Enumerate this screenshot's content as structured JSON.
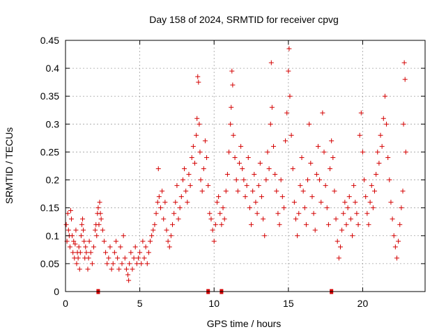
{
  "chart_data": {
    "type": "scatter",
    "title": "Day 158 of 2024, SRMTID for receiver cpvg",
    "xlabel": "GPS time / hours",
    "ylabel": "SRMTID / TECUs",
    "xlim": [
      0,
      24.2
    ],
    "ylim": [
      0,
      0.45
    ],
    "x_ticks": [
      0,
      5,
      10,
      15,
      20
    ],
    "x_tick_labels": [
      "0",
      "5",
      "10",
      "15",
      "20"
    ],
    "y_ticks": [
      0,
      0.05,
      0.1,
      0.15,
      0.2,
      0.25,
      0.3,
      0.35,
      0.4,
      0.45
    ],
    "y_tick_labels": [
      "0",
      "0.05",
      "0.1",
      "0.15",
      "0.2",
      "0.25",
      "0.3",
      "0.35",
      "0.4",
      "0.45"
    ],
    "grid": true,
    "marker": "+",
    "color": "#d40000",
    "gap_markers_x": [
      2.2,
      9.6,
      10.5,
      17.9
    ],
    "series": [
      {
        "name": "SRMTID",
        "points": [
          [
            0.05,
            0.12
          ],
          [
            0.1,
            0.09
          ],
          [
            0.15,
            0.14
          ],
          [
            0.2,
            0.11
          ],
          [
            0.25,
            0.1
          ],
          [
            0.3,
            0.08
          ],
          [
            0.35,
            0.145
          ],
          [
            0.4,
            0.13
          ],
          [
            0.45,
            0.1
          ],
          [
            0.5,
            0.07
          ],
          [
            0.55,
            0.09
          ],
          [
            0.6,
            0.06
          ],
          [
            0.65,
            0.085
          ],
          [
            0.7,
            0.11
          ],
          [
            0.75,
            0.05
          ],
          [
            0.8,
            0.07
          ],
          [
            0.85,
            0.06
          ],
          [
            0.9,
            0.08
          ],
          [
            0.95,
            0.04
          ],
          [
            1.0,
            0.07
          ],
          [
            1.05,
            0.1
          ],
          [
            1.1,
            0.12
          ],
          [
            1.15,
            0.13
          ],
          [
            1.2,
            0.11
          ],
          [
            1.25,
            0.09
          ],
          [
            1.3,
            0.06
          ],
          [
            1.35,
            0.08
          ],
          [
            1.4,
            0.07
          ],
          [
            1.5,
            0.04
          ],
          [
            1.55,
            0.06
          ],
          [
            1.6,
            0.09
          ],
          [
            1.7,
            0.07
          ],
          [
            1.8,
            0.05
          ],
          [
            1.9,
            0.08
          ],
          [
            2.0,
            0.11
          ],
          [
            2.05,
            0.12
          ],
          [
            2.1,
            0.1
          ],
          [
            2.15,
            0.14
          ],
          [
            2.2,
            0.15
          ],
          [
            2.25,
            0.12
          ],
          [
            2.3,
            0.16
          ],
          [
            2.35,
            0.14
          ],
          [
            2.4,
            0.13
          ],
          [
            2.5,
            0.11
          ],
          [
            2.6,
            0.09
          ],
          [
            2.7,
            0.07
          ],
          [
            2.8,
            0.05
          ],
          [
            2.9,
            0.06
          ],
          [
            3.0,
            0.08
          ],
          [
            3.1,
            0.04
          ],
          [
            3.2,
            0.05
          ],
          [
            3.3,
            0.07
          ],
          [
            3.4,
            0.09
          ],
          [
            3.5,
            0.06
          ],
          [
            3.6,
            0.04
          ],
          [
            3.7,
            0.08
          ],
          [
            3.8,
            0.05
          ],
          [
            3.9,
            0.1
          ],
          [
            4.0,
            0.06
          ],
          [
            4.1,
            0.04
          ],
          [
            4.2,
            0.03
          ],
          [
            4.25,
            0.02
          ],
          [
            4.3,
            0.05
          ],
          [
            4.4,
            0.07
          ],
          [
            4.5,
            0.04
          ],
          [
            4.6,
            0.06
          ],
          [
            4.7,
            0.08
          ],
          [
            4.8,
            0.05
          ],
          [
            4.9,
            0.06
          ],
          [
            5.0,
            0.07
          ],
          [
            5.1,
            0.05
          ],
          [
            5.2,
            0.09
          ],
          [
            5.3,
            0.06
          ],
          [
            5.4,
            0.08
          ],
          [
            5.5,
            0.05
          ],
          [
            5.6,
            0.07
          ],
          [
            5.7,
            0.09
          ],
          [
            5.8,
            0.1
          ],
          [
            5.9,
            0.11
          ],
          [
            6.0,
            0.12
          ],
          [
            6.1,
            0.14
          ],
          [
            6.2,
            0.16
          ],
          [
            6.25,
            0.22
          ],
          [
            6.3,
            0.17
          ],
          [
            6.4,
            0.15
          ],
          [
            6.5,
            0.18
          ],
          [
            6.6,
            0.13
          ],
          [
            6.7,
            0.16
          ],
          [
            6.8,
            0.11
          ],
          [
            6.9,
            0.09
          ],
          [
            7.0,
            0.08
          ],
          [
            7.1,
            0.1
          ],
          [
            7.2,
            0.12
          ],
          [
            7.3,
            0.14
          ],
          [
            7.4,
            0.16
          ],
          [
            7.5,
            0.19
          ],
          [
            7.6,
            0.13
          ],
          [
            7.7,
            0.15
          ],
          [
            7.8,
            0.17
          ],
          [
            7.9,
            0.2
          ],
          [
            8.0,
            0.22
          ],
          [
            8.1,
            0.18
          ],
          [
            8.2,
            0.16
          ],
          [
            8.3,
            0.21
          ],
          [
            8.4,
            0.19
          ],
          [
            8.5,
            0.24
          ],
          [
            8.6,
            0.26
          ],
          [
            8.7,
            0.23
          ],
          [
            8.8,
            0.28
          ],
          [
            8.85,
            0.31
          ],
          [
            8.9,
            0.385
          ],
          [
            8.95,
            0.375
          ],
          [
            9.0,
            0.3
          ],
          [
            9.05,
            0.25
          ],
          [
            9.1,
            0.2
          ],
          [
            9.2,
            0.18
          ],
          [
            9.3,
            0.22
          ],
          [
            9.4,
            0.27
          ],
          [
            9.5,
            0.24
          ],
          [
            9.6,
            0.19
          ],
          [
            9.7,
            0.14
          ],
          [
            9.8,
            0.13
          ],
          [
            9.9,
            0.11
          ],
          [
            10.0,
            0.09
          ],
          [
            10.1,
            0.12
          ],
          [
            10.2,
            0.16
          ],
          [
            10.3,
            0.17
          ],
          [
            10.4,
            0.14
          ],
          [
            10.5,
            0.12
          ],
          [
            10.6,
            0.15
          ],
          [
            10.7,
            0.13
          ],
          [
            10.8,
            0.18
          ],
          [
            10.9,
            0.21
          ],
          [
            11.0,
            0.25
          ],
          [
            11.1,
            0.3
          ],
          [
            11.15,
            0.33
          ],
          [
            11.2,
            0.395
          ],
          [
            11.25,
            0.37
          ],
          [
            11.3,
            0.28
          ],
          [
            11.4,
            0.24
          ],
          [
            11.5,
            0.2
          ],
          [
            11.6,
            0.18
          ],
          [
            11.7,
            0.23
          ],
          [
            11.8,
            0.26
          ],
          [
            11.9,
            0.22
          ],
          [
            12.0,
            0.2
          ],
          [
            12.1,
            0.17
          ],
          [
            12.2,
            0.19
          ],
          [
            12.3,
            0.24
          ],
          [
            12.4,
            0.15
          ],
          [
            12.5,
            0.12
          ],
          [
            12.6,
            0.18
          ],
          [
            12.7,
            0.21
          ],
          [
            12.8,
            0.16
          ],
          [
            12.9,
            0.14
          ],
          [
            13.0,
            0.19
          ],
          [
            13.1,
            0.23
          ],
          [
            13.2,
            0.17
          ],
          [
            13.3,
            0.13
          ],
          [
            13.4,
            0.1
          ],
          [
            13.5,
            0.2
          ],
          [
            13.6,
            0.25
          ],
          [
            13.7,
            0.22
          ],
          [
            13.8,
            0.3
          ],
          [
            13.85,
            0.41
          ],
          [
            13.9,
            0.33
          ],
          [
            14.0,
            0.26
          ],
          [
            14.1,
            0.21
          ],
          [
            14.2,
            0.18
          ],
          [
            14.3,
            0.14
          ],
          [
            14.4,
            0.12
          ],
          [
            14.5,
            0.2
          ],
          [
            14.6,
            0.17
          ],
          [
            14.7,
            0.15
          ],
          [
            14.8,
            0.27
          ],
          [
            14.9,
            0.32
          ],
          [
            15.0,
            0.395
          ],
          [
            15.05,
            0.435
          ],
          [
            15.1,
            0.35
          ],
          [
            15.2,
            0.28
          ],
          [
            15.3,
            0.22
          ],
          [
            15.4,
            0.16
          ],
          [
            15.5,
            0.13
          ],
          [
            15.6,
            0.1
          ],
          [
            15.7,
            0.14
          ],
          [
            15.8,
            0.19
          ],
          [
            15.9,
            0.24
          ],
          [
            16.0,
            0.18
          ],
          [
            16.1,
            0.15
          ],
          [
            16.2,
            0.12
          ],
          [
            16.3,
            0.2
          ],
          [
            16.4,
            0.3
          ],
          [
            16.5,
            0.23
          ],
          [
            16.6,
            0.17
          ],
          [
            16.7,
            0.14
          ],
          [
            16.8,
            0.11
          ],
          [
            16.9,
            0.21
          ],
          [
            17.0,
            0.26
          ],
          [
            17.1,
            0.2
          ],
          [
            17.2,
            0.16
          ],
          [
            17.3,
            0.32
          ],
          [
            17.4,
            0.25
          ],
          [
            17.5,
            0.19
          ],
          [
            17.6,
            0.15
          ],
          [
            17.7,
            0.12
          ],
          [
            17.8,
            0.22
          ],
          [
            17.9,
            0.27
          ],
          [
            18.0,
            0.24
          ],
          [
            18.1,
            0.18
          ],
          [
            18.2,
            0.13
          ],
          [
            18.3,
            0.09
          ],
          [
            18.4,
            0.06
          ],
          [
            18.5,
            0.08
          ],
          [
            18.6,
            0.11
          ],
          [
            18.7,
            0.14
          ],
          [
            18.8,
            0.16
          ],
          [
            18.9,
            0.12
          ],
          [
            19.0,
            0.15
          ],
          [
            19.1,
            0.17
          ],
          [
            19.2,
            0.13
          ],
          [
            19.3,
            0.1
          ],
          [
            19.4,
            0.19
          ],
          [
            19.5,
            0.16
          ],
          [
            19.6,
            0.14
          ],
          [
            19.7,
            0.12
          ],
          [
            19.8,
            0.28
          ],
          [
            19.9,
            0.32
          ],
          [
            20.0,
            0.25
          ],
          [
            20.1,
            0.2
          ],
          [
            20.2,
            0.17
          ],
          [
            20.3,
            0.14
          ],
          [
            20.4,
            0.12
          ],
          [
            20.5,
            0.16
          ],
          [
            20.6,
            0.19
          ],
          [
            20.7,
            0.15
          ],
          [
            20.8,
            0.18
          ],
          [
            20.9,
            0.21
          ],
          [
            21.0,
            0.25
          ],
          [
            21.1,
            0.23
          ],
          [
            21.2,
            0.28
          ],
          [
            21.3,
            0.26
          ],
          [
            21.4,
            0.31
          ],
          [
            21.5,
            0.35
          ],
          [
            21.6,
            0.3
          ],
          [
            21.7,
            0.24
          ],
          [
            21.8,
            0.2
          ],
          [
            21.9,
            0.16
          ],
          [
            22.0,
            0.13
          ],
          [
            22.1,
            0.1
          ],
          [
            22.2,
            0.08
          ],
          [
            22.3,
            0.06
          ],
          [
            22.4,
            0.09
          ],
          [
            22.5,
            0.12
          ],
          [
            22.6,
            0.15
          ],
          [
            22.7,
            0.18
          ],
          [
            22.75,
            0.3
          ],
          [
            22.8,
            0.41
          ],
          [
            22.85,
            0.38
          ],
          [
            22.9,
            0.25
          ]
        ]
      }
    ]
  }
}
